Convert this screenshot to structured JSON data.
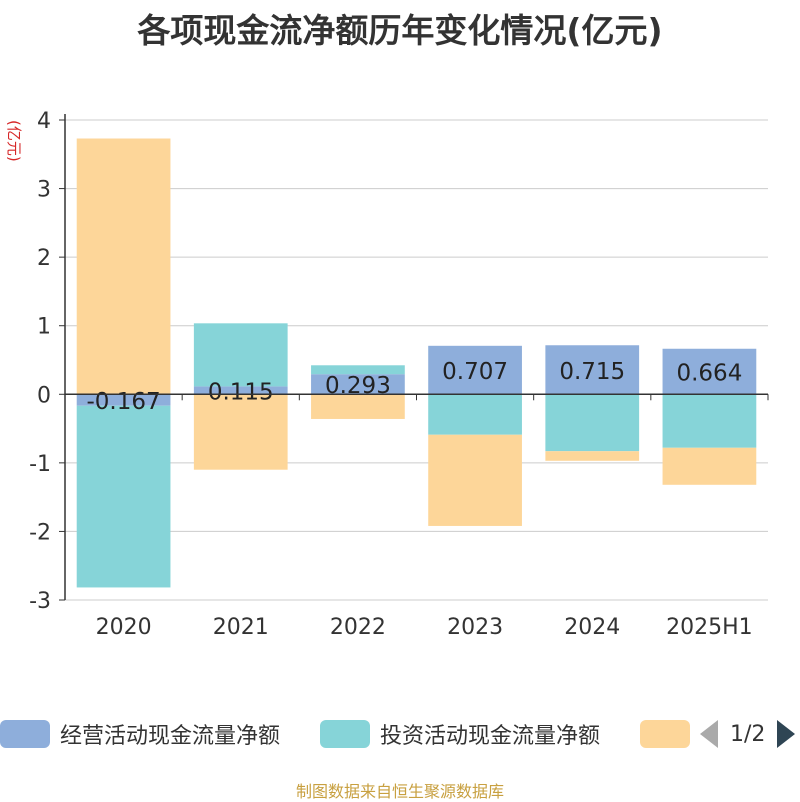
{
  "title": "各项现金流净额历年变化情况(亿元)",
  "y_axis_unit": "(亿元)",
  "source_note": "制图数据来自恒生聚源数据库",
  "legend_pager": "1/2",
  "colors": {
    "operating": "#8eaedb",
    "investing": "#86d4d8",
    "financing": "#fdd699",
    "axis": "#333333",
    "grid": "#cccccc",
    "unit": "#d62728"
  },
  "chart_data": {
    "type": "bar",
    "stacked": true,
    "categories": [
      "2020",
      "2021",
      "2022",
      "2023",
      "2024",
      "2025H1"
    ],
    "ylim": [
      -3,
      4
    ],
    "yticks": [
      4,
      3,
      2,
      1,
      0,
      -1,
      -2,
      -3
    ],
    "grid": true,
    "legend_position": "bottom",
    "series": [
      {
        "name": "经营活动现金流量净额",
        "color": "#8eaedb",
        "values": [
          -0.167,
          0.115,
          0.293,
          0.707,
          0.715,
          0.664
        ],
        "labels": [
          "-0.167",
          "0.115",
          "0.293",
          "0.707",
          "0.715",
          "0.664"
        ]
      },
      {
        "name": "投资活动现金流量净额",
        "color": "#86d4d8",
        "values": [
          -2.65,
          0.92,
          0.13,
          -0.59,
          -0.83,
          -0.78
        ]
      },
      {
        "name": "",
        "color": "#fdd699",
        "values": [
          3.73,
          -1.1,
          -0.36,
          -1.33,
          -0.14,
          -0.54
        ]
      }
    ]
  }
}
